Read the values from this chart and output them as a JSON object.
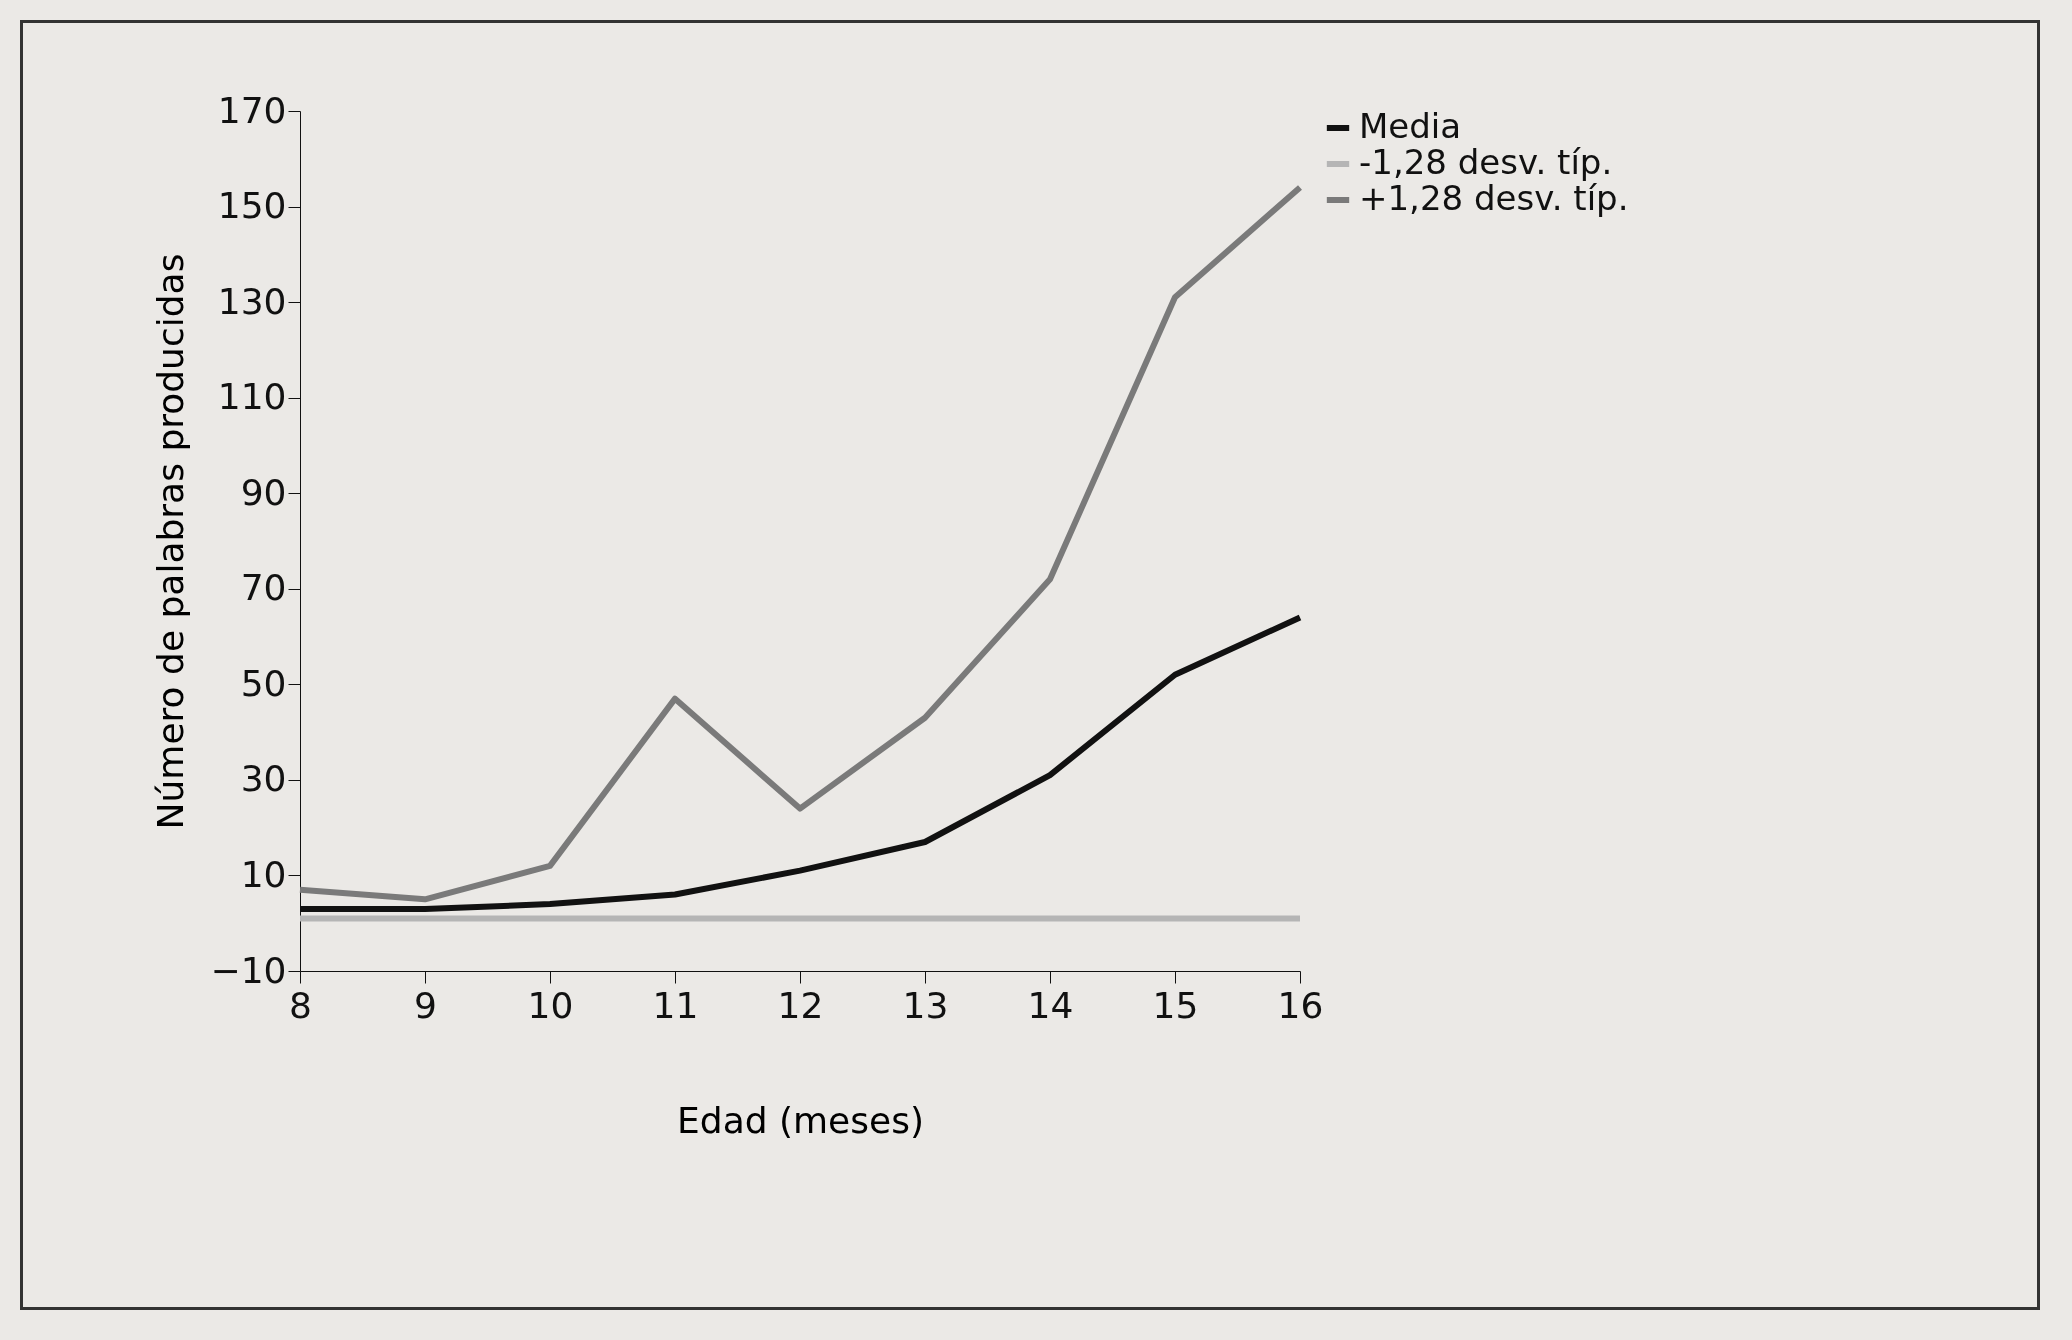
{
  "chart_data": {
    "type": "line",
    "xlabel": "Edad (meses)",
    "ylabel": "Número de palabras producidas",
    "x": [
      8,
      9,
      10,
      11,
      12,
      13,
      14,
      15,
      16
    ],
    "series": [
      {
        "name": "Media",
        "color": "#111111",
        "values": [
          3,
          3,
          4,
          6,
          11,
          17,
          31,
          52,
          64
        ]
      },
      {
        "name": "-1,28 desv. típ.",
        "color": "#b5b5b5",
        "values": [
          1,
          1,
          1,
          1,
          1,
          1,
          1,
          1,
          1
        ]
      },
      {
        "name": "+1,28 desv. típ.",
        "color": "#7a7a7a",
        "values": [
          7,
          5,
          12,
          47,
          24,
          43,
          72,
          131,
          154
        ]
      }
    ],
    "xlim": [
      8,
      16
    ],
    "xticks": [
      8,
      9,
      10,
      11,
      12,
      13,
      14,
      15,
      16
    ],
    "ylim": [
      -10,
      170
    ],
    "yticks": [
      -10,
      10,
      30,
      50,
      70,
      90,
      110,
      130,
      150,
      170
    ],
    "grid": false,
    "legend": "right",
    "marker": "none",
    "line_style": "solid"
  }
}
